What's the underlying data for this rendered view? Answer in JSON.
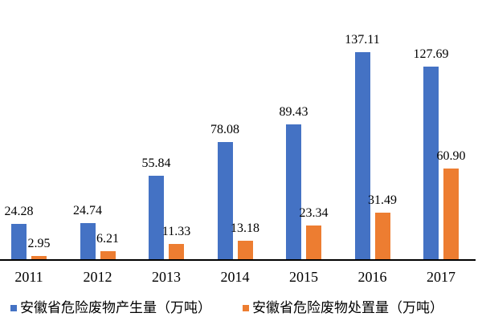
{
  "chart_data": {
    "type": "bar",
    "title": "",
    "xlabel": "",
    "ylabel": "",
    "categories": [
      "2011",
      "2012",
      "2013",
      "2014",
      "2015",
      "2016",
      "2017"
    ],
    "series": [
      {
        "key": "production",
        "name": "安徽省危险废物产生量（万吨）",
        "color": "#4472C4",
        "values": [
          24.28,
          24.74,
          55.84,
          78.08,
          89.43,
          137.11,
          127.69
        ]
      },
      {
        "key": "disposal",
        "name": "安徽省危险废物处置量（万吨）",
        "color": "#ED7D31",
        "values": [
          2.95,
          6.21,
          11.33,
          13.18,
          23.34,
          31.49,
          60.9
        ]
      }
    ],
    "value_labels": true,
    "value_label_decimals": 2,
    "ylim": [
      0,
      145
    ],
    "grid": false,
    "y_axis_visible": false,
    "axis_line_color": "#000000",
    "legend_position": "bottom"
  }
}
